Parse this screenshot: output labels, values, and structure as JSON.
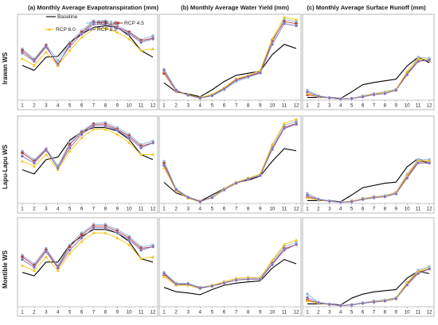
{
  "col_titles": [
    "(a) Monthly Average Evapotranspiration (mm)",
    "(b) Monthly Average Water Yield (mm)",
    "(c) Monthly Average Surface Runoff (mm)"
  ],
  "row_labels": [
    "Irawan WS",
    "Lapu-Lapu WS",
    "Montible WS"
  ],
  "series_styles": [
    {
      "name": "Baseline",
      "color": "#000000",
      "marker": "none"
    },
    {
      "name": "RCP 2.6",
      "color": "#8fb3e0",
      "marker": "circle"
    },
    {
      "name": "RCP 4.5",
      "color": "#b0403e",
      "marker": "square"
    },
    {
      "name": "RCP 6.0",
      "color": "#f2c314",
      "marker": "triangle"
    },
    {
      "name": "RCP 8.5",
      "color": "#7e6fb5",
      "marker": "circle"
    }
  ],
  "chart_data": [
    {
      "type": "line",
      "row": 0,
      "col": 0,
      "title": "(a) Monthly Average Evapotranspiration (mm)",
      "x": [
        1,
        2,
        3,
        4,
        5,
        6,
        7,
        8,
        9,
        10,
        11,
        12
      ],
      "ylim": [
        0,
        100
      ],
      "legend": "top-right",
      "series": [
        {
          "name": "Baseline",
          "values": [
            42,
            36,
            52,
            53,
            70,
            80,
            88,
            90,
            88,
            78,
            60,
            52
          ]
        },
        {
          "name": "RCP 2.6",
          "values": [
            62,
            50,
            67,
            48,
            70,
            84,
            96,
            96,
            90,
            83,
            73,
            78
          ]
        },
        {
          "name": "RCP 4.5",
          "values": [
            60,
            48,
            66,
            42,
            68,
            82,
            94,
            94,
            88,
            82,
            72,
            75
          ]
        },
        {
          "name": "RCP 6.0",
          "values": [
            50,
            42,
            58,
            42,
            60,
            76,
            86,
            87,
            82,
            74,
            60,
            62
          ]
        },
        {
          "name": "RCP 8.5",
          "values": [
            57,
            47,
            64,
            44,
            65,
            80,
            92,
            92,
            87,
            80,
            70,
            74
          ]
        }
      ]
    },
    {
      "type": "line",
      "row": 0,
      "col": 1,
      "title": "(b) Monthly Average Water Yield (mm)",
      "x": [
        1,
        2,
        3,
        4,
        5,
        6,
        7,
        8,
        9,
        10,
        11,
        12
      ],
      "ylim": [
        0,
        200
      ],
      "series": [
        {
          "name": "Baseline",
          "values": [
            42,
            20,
            15,
            8,
            25,
            45,
            60,
            65,
            70,
            110,
            135,
            125
          ]
        },
        {
          "name": "RCP 2.6",
          "values": [
            75,
            25,
            12,
            5,
            10,
            25,
            45,
            55,
            65,
            140,
            195,
            190
          ]
        },
        {
          "name": "RCP 4.5",
          "values": [
            65,
            22,
            12,
            5,
            12,
            28,
            50,
            58,
            68,
            145,
            190,
            185
          ]
        },
        {
          "name": "RCP 6.0",
          "values": [
            70,
            23,
            13,
            6,
            14,
            30,
            52,
            60,
            72,
            148,
            200,
            195
          ]
        },
        {
          "name": "RCP 8.5",
          "values": [
            72,
            24,
            12,
            5,
            11,
            27,
            48,
            57,
            66,
            135,
            185,
            180
          ]
        }
      ]
    },
    {
      "type": "line",
      "row": 0,
      "col": 2,
      "title": "(c) Monthly Average Surface Runoff (mm)",
      "x": [
        1,
        2,
        3,
        4,
        5,
        6,
        7,
        8,
        9,
        10,
        11,
        12
      ],
      "ylim": [
        0,
        150
      ],
      "series": [
        {
          "name": "Baseline",
          "values": [
            5,
            5,
            5,
            3,
            15,
            28,
            32,
            35,
            38,
            62,
            78,
            68
          ]
        },
        {
          "name": "RCP 2.6",
          "values": [
            18,
            8,
            5,
            2,
            3,
            8,
            12,
            15,
            20,
            50,
            78,
            76
          ]
        },
        {
          "name": "RCP 4.5",
          "values": [
            10,
            6,
            4,
            2,
            3,
            6,
            10,
            12,
            18,
            48,
            72,
            72
          ]
        },
        {
          "name": "RCP 6.0",
          "values": [
            12,
            6,
            4,
            2,
            3,
            7,
            11,
            14,
            19,
            52,
            75,
            74
          ]
        },
        {
          "name": "RCP 8.5",
          "values": [
            15,
            7,
            4,
            2,
            3,
            6,
            10,
            12,
            18,
            46,
            70,
            73
          ]
        }
      ]
    },
    {
      "type": "line",
      "row": 1,
      "col": 0,
      "x": [
        1,
        2,
        3,
        4,
        5,
        6,
        7,
        8,
        9,
        10,
        11,
        12
      ],
      "ylim": [
        0,
        100
      ],
      "series": [
        {
          "name": "Baseline",
          "values": [
            40,
            35,
            52,
            55,
            75,
            85,
            90,
            90,
            86,
            76,
            58,
            52
          ]
        },
        {
          "name": "RCP 2.6",
          "values": [
            62,
            52,
            65,
            45,
            72,
            86,
            95,
            96,
            90,
            82,
            70,
            74
          ]
        },
        {
          "name": "RCP 4.5",
          "values": [
            60,
            50,
            64,
            42,
            70,
            84,
            94,
            94,
            88,
            80,
            68,
            72
          ]
        },
        {
          "name": "RCP 6.0",
          "values": [
            50,
            44,
            58,
            40,
            62,
            78,
            88,
            88,
            82,
            72,
            58,
            58
          ]
        },
        {
          "name": "RCP 8.5",
          "values": [
            56,
            48,
            63,
            42,
            66,
            82,
            92,
            92,
            87,
            78,
            66,
            72
          ]
        }
      ]
    },
    {
      "type": "line",
      "row": 1,
      "col": 1,
      "x": [
        1,
        2,
        3,
        4,
        5,
        6,
        7,
        8,
        9,
        10,
        11,
        12
      ],
      "ylim": [
        0,
        200
      ],
      "series": [
        {
          "name": "Baseline",
          "values": [
            50,
            25,
            15,
            5,
            20,
            35,
            50,
            55,
            65,
            100,
            130,
            125
          ]
        },
        {
          "name": "RCP 2.6",
          "values": [
            100,
            35,
            15,
            5,
            15,
            35,
            50,
            60,
            68,
            135,
            185,
            195
          ]
        },
        {
          "name": "RCP 4.5",
          "values": [
            95,
            32,
            14,
            5,
            14,
            33,
            48,
            58,
            66,
            130,
            180,
            190
          ]
        },
        {
          "name": "RCP 6.0",
          "values": [
            85,
            30,
            12,
            4,
            15,
            34,
            50,
            60,
            70,
            140,
            190,
            200
          ]
        },
        {
          "name": "RCP 8.5",
          "values": [
            90,
            33,
            14,
            4,
            14,
            32,
            48,
            57,
            66,
            128,
            178,
            188
          ]
        }
      ]
    },
    {
      "type": "line",
      "row": 1,
      "col": 2,
      "x": [
        1,
        2,
        3,
        4,
        5,
        6,
        7,
        8,
        9,
        10,
        11,
        12
      ],
      "ylim": [
        0,
        150
      ],
      "series": [
        {
          "name": "Baseline",
          "values": [
            5,
            5,
            5,
            3,
            15,
            28,
            32,
            36,
            38,
            65,
            80,
            70
          ]
        },
        {
          "name": "RCP 2.6",
          "values": [
            18,
            8,
            5,
            2,
            4,
            9,
            12,
            14,
            20,
            52,
            78,
            78
          ]
        },
        {
          "name": "RCP 4.5",
          "values": [
            12,
            6,
            4,
            2,
            4,
            8,
            11,
            12,
            18,
            48,
            74,
            74
          ]
        },
        {
          "name": "RCP 6.0",
          "values": [
            10,
            6,
            4,
            2,
            4,
            8,
            11,
            13,
            19,
            50,
            76,
            76
          ]
        },
        {
          "name": "RCP 8.5",
          "values": [
            15,
            7,
            4,
            2,
            3,
            7,
            10,
            12,
            17,
            45,
            72,
            72
          ]
        }
      ]
    },
    {
      "type": "line",
      "row": 2,
      "col": 0,
      "x": [
        1,
        2,
        3,
        4,
        5,
        6,
        7,
        8,
        9,
        10,
        11,
        12
      ],
      "ylim": [
        0,
        100
      ],
      "series": [
        {
          "name": "Baseline",
          "values": [
            40,
            36,
            52,
            52,
            72,
            82,
            90,
            90,
            86,
            76,
            56,
            52
          ]
        },
        {
          "name": "RCP 2.6",
          "values": [
            60,
            50,
            68,
            48,
            72,
            86,
            96,
            96,
            90,
            82,
            70,
            72
          ]
        },
        {
          "name": "RCP 4.5",
          "values": [
            58,
            48,
            66,
            46,
            70,
            84,
            94,
            94,
            88,
            80,
            68,
            70
          ]
        },
        {
          "name": "RCP 6.0",
          "values": [
            48,
            42,
            58,
            42,
            62,
            76,
            86,
            86,
            80,
            72,
            56,
            58
          ]
        },
        {
          "name": "RCP 8.5",
          "values": [
            55,
            46,
            64,
            45,
            66,
            80,
            92,
            92,
            86,
            78,
            66,
            70
          ]
        }
      ]
    },
    {
      "type": "line",
      "row": 2,
      "col": 1,
      "x": [
        1,
        2,
        3,
        4,
        5,
        6,
        7,
        8,
        9,
        10,
        11,
        12
      ],
      "ylim": [
        0,
        200
      ],
      "series": [
        {
          "name": "Baseline",
          "values": [
            45,
            35,
            32,
            28,
            40,
            50,
            55,
            58,
            60,
            90,
            110,
            100
          ]
        },
        {
          "name": "RCP 2.6",
          "values": [
            80,
            55,
            55,
            45,
            50,
            58,
            65,
            68,
            66,
            105,
            140,
            150
          ]
        },
        {
          "name": "RCP 4.5",
          "values": [
            75,
            52,
            52,
            44,
            48,
            56,
            62,
            65,
            64,
            100,
            135,
            145
          ]
        },
        {
          "name": "RCP 6.0",
          "values": [
            70,
            50,
            50,
            42,
            50,
            58,
            66,
            68,
            68,
            108,
            145,
            155
          ]
        },
        {
          "name": "RCP 8.5",
          "values": [
            78,
            53,
            53,
            43,
            48,
            55,
            62,
            64,
            64,
            98,
            132,
            145
          ]
        }
      ]
    },
    {
      "type": "line",
      "row": 2,
      "col": 2,
      "x": [
        1,
        2,
        3,
        4,
        5,
        6,
        7,
        8,
        9,
        10,
        11,
        12
      ],
      "ylim": [
        0,
        150
      ],
      "series": [
        {
          "name": "Baseline",
          "values": [
            5,
            5,
            5,
            3,
            15,
            22,
            26,
            28,
            30,
            50,
            62,
            58
          ]
        },
        {
          "name": "RCP 2.6",
          "values": [
            22,
            8,
            5,
            2,
            4,
            7,
            10,
            12,
            16,
            42,
            64,
            70
          ]
        },
        {
          "name": "RCP 4.5",
          "values": [
            12,
            6,
            4,
            2,
            3,
            6,
            9,
            10,
            14,
            40,
            60,
            66
          ]
        },
        {
          "name": "RCP 6.0",
          "values": [
            10,
            6,
            4,
            2,
            3,
            6,
            9,
            11,
            15,
            42,
            62,
            68
          ]
        },
        {
          "name": "RCP 8.5",
          "values": [
            16,
            7,
            4,
            2,
            3,
            6,
            8,
            10,
            14,
            38,
            58,
            66
          ]
        }
      ]
    }
  ]
}
